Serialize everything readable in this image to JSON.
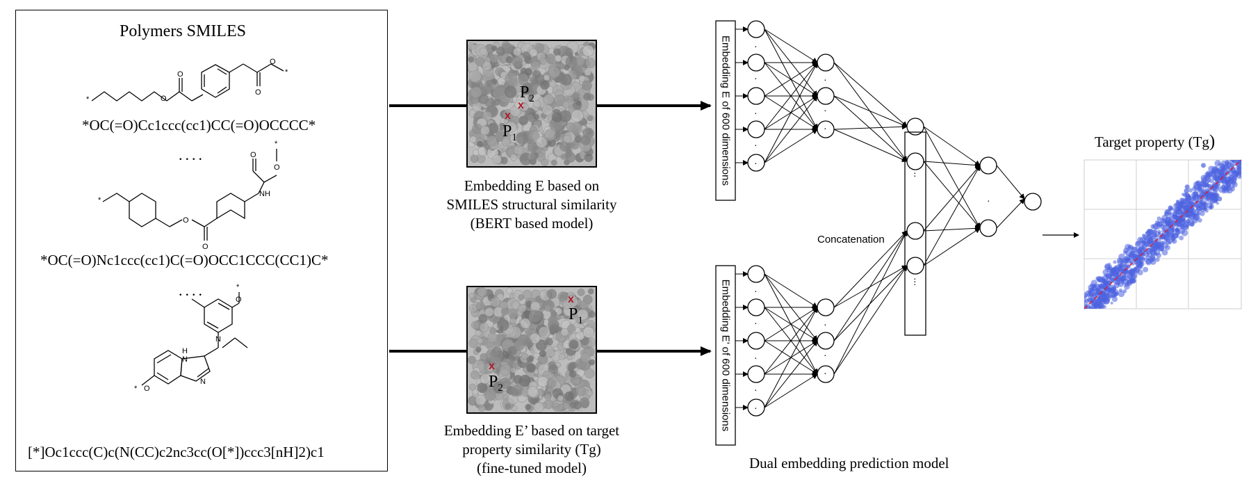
{
  "polymers_panel": {
    "title": "Polymers SMILES",
    "smiles": [
      "*OC(=O)Cc1ccc(cc1)CC(=O)OCCCC*",
      "*OC(=O)Nc1ccc(cc1)C(=O)OCC1CCC(CC1)C*",
      "[*]Oc1ccc(C)c(N(CC)c2nc3cc(O[*])ccc3[nH]2)c1"
    ],
    "ellipsis": "....",
    "atom_labels": {
      "o": "O",
      "nh": "NH",
      "h": "H",
      "n": "N",
      "star": "*"
    }
  },
  "embedding_e": {
    "caption_lines": [
      "Embedding E based on",
      "SMILES structural similarity",
      "(BERT based model)"
    ],
    "p1": "P",
    "p1_sub": "1",
    "p2": "P",
    "p2_sub": "2",
    "marker": "x"
  },
  "embedding_e_prime": {
    "caption_lines": [
      "Embedding E’  based on target",
      "property similarity (Tg)",
      "(fine-tuned model)"
    ],
    "p1": "P",
    "p1_sub": "1",
    "p2": "P",
    "p2_sub": "2",
    "marker": "x"
  },
  "network": {
    "input_label_top": "Embedding E of 600 dimensions",
    "input_label_bottom": "Embedding E’ of 600 dimensions",
    "concat_label": "Concatenation",
    "footer": "Dual embedding prediction model",
    "dot": "·"
  },
  "target": {
    "title_main": "Target property (Tg",
    "title_paren": ")"
  },
  "colors": {
    "marker": "#b0172a",
    "scatter": "#4c63e0",
    "fit_line": "#e01b2b"
  }
}
